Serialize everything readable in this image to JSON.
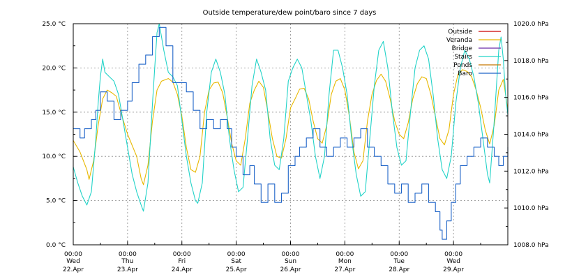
{
  "chart_data": {
    "type": "line",
    "title": "Outside temperature/dew point/baro since 7 days",
    "y_left": {
      "ylim": [
        0,
        25
      ],
      "ticks": [
        0,
        5,
        10,
        15,
        20,
        25
      ],
      "tick_labels": [
        "0.0 °C",
        "5.0 °C",
        "10.0 °C",
        "15.0 °C",
        "20.0 °C",
        "25.0 °C"
      ]
    },
    "y_right": {
      "ylim": [
        1008,
        1020
      ],
      "ticks": [
        1008,
        1010,
        1012,
        1014,
        1016,
        1018,
        1020
      ],
      "tick_labels": [
        "1008.0 hPa",
        "1010.0 hPa",
        "1012.0 hPa",
        "1014.0 hPa",
        "1016.0 hPa",
        "1018.0 hPa",
        "1020.0 hPa"
      ]
    },
    "x": {
      "unit": "hours since Wed 22.Apr 00:00",
      "range": [
        0,
        192
      ],
      "ticks": [
        {
          "hour": 0,
          "time": "00:00",
          "day": "Wed",
          "date": "22.Apr"
        },
        {
          "hour": 24,
          "time": "00:00",
          "day": "Thu",
          "date": "23.Apr"
        },
        {
          "hour": 48,
          "time": "00:00",
          "day": "Fri",
          "date": "24.Apr"
        },
        {
          "hour": 72,
          "time": "00:00",
          "day": "Sat",
          "date": "25.Apr"
        },
        {
          "hour": 96,
          "time": "00:00",
          "day": "Sun",
          "date": "26.Apr"
        },
        {
          "hour": 120,
          "time": "00:00",
          "day": "Mon",
          "date": "27.Apr"
        },
        {
          "hour": 144,
          "time": "00:00",
          "day": "Tue",
          "date": "28.Apr"
        },
        {
          "hour": 168,
          "time": "00:00",
          "day": "Wed",
          "date": "29.Apr"
        }
      ]
    },
    "legend": {
      "placement": "top-right",
      "entries": [
        {
          "name": "Outside",
          "color": "#cc0000"
        },
        {
          "name": "Veranda",
          "color": "#e8b800"
        },
        {
          "name": "Bridge",
          "color": "#6a2aa8"
        },
        {
          "name": "Stairs",
          "color": "#22d3c8"
        },
        {
          "name": "Ponds",
          "color": "#c87800"
        },
        {
          "name": "Baro",
          "color": "#1e64c8"
        }
      ]
    },
    "series": [
      {
        "name": "Veranda",
        "axis": "left",
        "color": "#e8b800",
        "points": [
          [
            0,
            11.8
          ],
          [
            3,
            10.5
          ],
          [
            6,
            8.5
          ],
          [
            7,
            7.4
          ],
          [
            9,
            9.5
          ],
          [
            11,
            13.5
          ],
          [
            13,
            16.5
          ],
          [
            15,
            17.5
          ],
          [
            17,
            17.2
          ],
          [
            19,
            16.8
          ],
          [
            21,
            15
          ],
          [
            24,
            12.5
          ],
          [
            28,
            10
          ],
          [
            30,
            7.5
          ],
          [
            31,
            6.8
          ],
          [
            33,
            9
          ],
          [
            35,
            14
          ],
          [
            37,
            17.5
          ],
          [
            39,
            18.5
          ],
          [
            42,
            18.8
          ],
          [
            44,
            18.4
          ],
          [
            46,
            17
          ],
          [
            48,
            14.5
          ],
          [
            50,
            11
          ],
          [
            52,
            8.5
          ],
          [
            54,
            8.2
          ],
          [
            56,
            10
          ],
          [
            58,
            15
          ],
          [
            60,
            17.5
          ],
          [
            62,
            18.3
          ],
          [
            64,
            18.4
          ],
          [
            66,
            17.2
          ],
          [
            68,
            14.5
          ],
          [
            70,
            11.5
          ],
          [
            72,
            9.5
          ],
          [
            74,
            9
          ],
          [
            76,
            12
          ],
          [
            78,
            16
          ],
          [
            80,
            17.5
          ],
          [
            82,
            18.5
          ],
          [
            84,
            17.8
          ],
          [
            86,
            15
          ],
          [
            88,
            12
          ],
          [
            90,
            10
          ],
          [
            92,
            9.8
          ],
          [
            94,
            12
          ],
          [
            96,
            15.5
          ],
          [
            98,
            16.5
          ],
          [
            100,
            17.6
          ],
          [
            102,
            17.7
          ],
          [
            104,
            16.5
          ],
          [
            106,
            14
          ],
          [
            108,
            12
          ],
          [
            110,
            11.5
          ],
          [
            112,
            13.5
          ],
          [
            114,
            17
          ],
          [
            116,
            18.5
          ],
          [
            118,
            18.8
          ],
          [
            120,
            17.5
          ],
          [
            122,
            14.5
          ],
          [
            124,
            10.5
          ],
          [
            126,
            8.6
          ],
          [
            128,
            9.5
          ],
          [
            130,
            14
          ],
          [
            132,
            17
          ],
          [
            134,
            18.6
          ],
          [
            136,
            19.3
          ],
          [
            138,
            18.5
          ],
          [
            140,
            16.5
          ],
          [
            142,
            14
          ],
          [
            144,
            12.5
          ],
          [
            146,
            12
          ],
          [
            148,
            13.8
          ],
          [
            150,
            16.5
          ],
          [
            152,
            18.2
          ],
          [
            154,
            19
          ],
          [
            156,
            18.8
          ],
          [
            158,
            17
          ],
          [
            160,
            14.5
          ],
          [
            162,
            12
          ],
          [
            164,
            11.3
          ],
          [
            166,
            13
          ],
          [
            168,
            17
          ],
          [
            170,
            19.3
          ],
          [
            172,
            19.8
          ],
          [
            174,
            19.6
          ],
          [
            176,
            19
          ],
          [
            178,
            17.5
          ],
          [
            180,
            15.5
          ],
          [
            182,
            13
          ],
          [
            184,
            11.4
          ],
          [
            186,
            13.5
          ],
          [
            188,
            17.5
          ],
          [
            190,
            18.7
          ],
          [
            191,
            17
          ],
          [
            192,
            15.2
          ]
        ]
      },
      {
        "name": "Stairs",
        "axis": "left",
        "color": "#22d3c8",
        "points": [
          [
            0,
            8.8
          ],
          [
            2,
            7
          ],
          [
            4,
            5.5
          ],
          [
            6,
            4.5
          ],
          [
            8,
            6
          ],
          [
            10,
            12
          ],
          [
            11,
            16
          ],
          [
            12,
            19
          ],
          [
            13,
            21
          ],
          [
            14,
            19.5
          ],
          [
            16,
            19
          ],
          [
            18,
            18.5
          ],
          [
            20,
            17
          ],
          [
            22,
            14
          ],
          [
            24,
            11
          ],
          [
            26,
            8
          ],
          [
            28,
            6
          ],
          [
            30,
            4.5
          ],
          [
            31,
            3.8
          ],
          [
            33,
            7
          ],
          [
            35,
            16
          ],
          [
            36,
            20
          ],
          [
            37,
            24
          ],
          [
            38,
            25
          ],
          [
            40,
            22
          ],
          [
            42,
            19.5
          ],
          [
            44,
            19
          ],
          [
            46,
            18
          ],
          [
            48,
            14
          ],
          [
            50,
            10
          ],
          [
            52,
            7
          ],
          [
            54,
            5
          ],
          [
            55,
            4.7
          ],
          [
            57,
            7
          ],
          [
            59,
            15
          ],
          [
            61,
            19.5
          ],
          [
            63,
            21
          ],
          [
            65,
            19.5
          ],
          [
            67,
            17
          ],
          [
            69,
            12
          ],
          [
            71,
            8.5
          ],
          [
            73,
            6
          ],
          [
            75,
            6.5
          ],
          [
            77,
            12
          ],
          [
            79,
            18
          ],
          [
            81,
            21
          ],
          [
            83,
            19.5
          ],
          [
            85,
            17.5
          ],
          [
            87,
            12
          ],
          [
            89,
            9
          ],
          [
            91,
            8.5
          ],
          [
            93,
            12
          ],
          [
            95,
            18.5
          ],
          [
            97,
            20
          ],
          [
            99,
            21
          ],
          [
            101,
            20
          ],
          [
            103,
            17
          ],
          [
            105,
            14
          ],
          [
            107,
            10
          ],
          [
            109,
            7.5
          ],
          [
            111,
            10
          ],
          [
            113,
            17
          ],
          [
            115,
            22
          ],
          [
            117,
            22
          ],
          [
            119,
            20
          ],
          [
            121,
            17
          ],
          [
            123,
            12
          ],
          [
            125,
            8
          ],
          [
            127,
            5.5
          ],
          [
            129,
            6
          ],
          [
            131,
            12
          ],
          [
            133,
            18
          ],
          [
            135,
            22
          ],
          [
            137,
            23
          ],
          [
            139,
            20
          ],
          [
            141,
            15
          ],
          [
            143,
            11
          ],
          [
            145,
            9
          ],
          [
            147,
            9.5
          ],
          [
            149,
            15
          ],
          [
            151,
            20
          ],
          [
            153,
            22
          ],
          [
            155,
            22.5
          ],
          [
            157,
            21
          ],
          [
            159,
            17
          ],
          [
            161,
            12
          ],
          [
            163,
            8.5
          ],
          [
            165,
            7.5
          ],
          [
            167,
            10
          ],
          [
            169,
            16
          ],
          [
            171,
            20
          ],
          [
            173,
            22
          ],
          [
            175,
            21
          ],
          [
            177,
            19
          ],
          [
            179,
            16
          ],
          [
            181,
            12
          ],
          [
            183,
            8
          ],
          [
            184,
            7
          ],
          [
            186,
            14
          ],
          [
            188,
            22
          ],
          [
            189,
            23.5
          ],
          [
            190,
            21
          ],
          [
            191,
            17
          ],
          [
            192,
            14.7
          ]
        ]
      },
      {
        "name": "Baro",
        "axis": "right",
        "color": "#1e64c8",
        "step": true,
        "points": [
          [
            0,
            1014.3
          ],
          [
            3,
            1013.8
          ],
          [
            5,
            1014.3
          ],
          [
            8,
            1014.8
          ],
          [
            10,
            1015.3
          ],
          [
            12,
            1016.3
          ],
          [
            15,
            1015.8
          ],
          [
            18,
            1014.8
          ],
          [
            21,
            1015.3
          ],
          [
            24,
            1015.8
          ],
          [
            26,
            1016.8
          ],
          [
            29,
            1017.8
          ],
          [
            32,
            1018.3
          ],
          [
            35,
            1019.3
          ],
          [
            38,
            1019.8
          ],
          [
            41,
            1018.8
          ],
          [
            44,
            1016.8
          ],
          [
            47,
            1016.8
          ],
          [
            50,
            1016.3
          ],
          [
            53,
            1015.3
          ],
          [
            56,
            1014.3
          ],
          [
            59,
            1014.8
          ],
          [
            62,
            1014.3
          ],
          [
            65,
            1014.8
          ],
          [
            68,
            1014.3
          ],
          [
            70,
            1013.3
          ],
          [
            72,
            1012.8
          ],
          [
            75,
            1011.8
          ],
          [
            78,
            1012.3
          ],
          [
            80,
            1011.3
          ],
          [
            83,
            1010.3
          ],
          [
            86,
            1011.3
          ],
          [
            89,
            1010.3
          ],
          [
            92,
            1010.8
          ],
          [
            95,
            1012.3
          ],
          [
            98,
            1012.8
          ],
          [
            100,
            1013.3
          ],
          [
            103,
            1013.8
          ],
          [
            106,
            1014.3
          ],
          [
            109,
            1013.3
          ],
          [
            112,
            1012.8
          ],
          [
            115,
            1013.3
          ],
          [
            118,
            1013.8
          ],
          [
            121,
            1013.3
          ],
          [
            124,
            1013.8
          ],
          [
            127,
            1014.3
          ],
          [
            130,
            1013.3
          ],
          [
            133,
            1012.8
          ],
          [
            136,
            1012.3
          ],
          [
            139,
            1011.3
          ],
          [
            142,
            1010.8
          ],
          [
            145,
            1011.3
          ],
          [
            148,
            1010.3
          ],
          [
            151,
            1010.8
          ],
          [
            154,
            1011.3
          ],
          [
            157,
            1010.3
          ],
          [
            160,
            1009.8
          ],
          [
            162,
            1008.8
          ],
          [
            163,
            1008.3
          ],
          [
            165,
            1009.3
          ],
          [
            167,
            1010.3
          ],
          [
            169,
            1011.3
          ],
          [
            171,
            1012.3
          ],
          [
            174,
            1012.8
          ],
          [
            177,
            1013.3
          ],
          [
            180,
            1013.8
          ],
          [
            183,
            1013.3
          ],
          [
            186,
            1012.8
          ],
          [
            188,
            1012.3
          ],
          [
            190,
            1012.8
          ],
          [
            192,
            1013.3
          ]
        ]
      }
    ]
  }
}
